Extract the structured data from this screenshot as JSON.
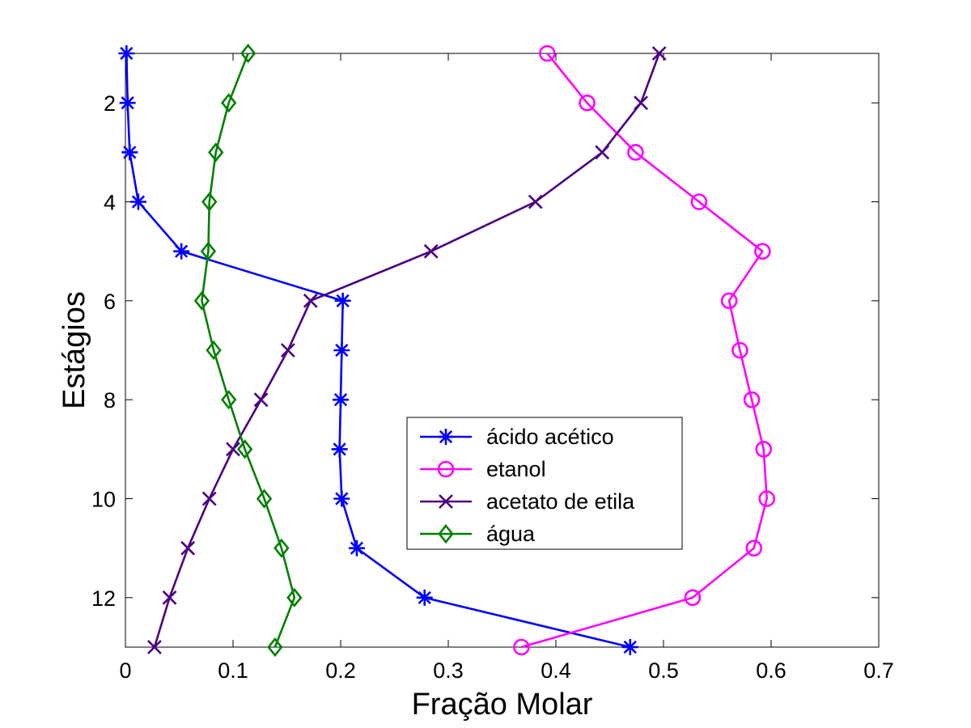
{
  "chart_data": {
    "type": "line",
    "xlabel": "Fração Molar",
    "ylabel": "Estágios",
    "xlim": [
      0,
      0.7
    ],
    "ylim": [
      1,
      13
    ],
    "y_reversed": true,
    "xticks": [
      "0",
      "0.1",
      "0.2",
      "0.3",
      "0.4",
      "0.5",
      "0.6",
      "0.7"
    ],
    "yticks": [
      "2",
      "4",
      "6",
      "8",
      "10",
      "12"
    ],
    "grid": false,
    "legend_position": "center-right",
    "y": [
      1,
      2,
      3,
      4,
      5,
      6,
      7,
      8,
      9,
      10,
      11,
      12,
      13
    ],
    "series": [
      {
        "name": "ácido acético",
        "color": "#0000FF",
        "marker": "asterisk",
        "values": [
          0.001,
          0.002,
          0.004,
          0.012,
          0.052,
          0.202,
          0.201,
          0.2,
          0.199,
          0.201,
          0.215,
          0.278,
          0.469
        ]
      },
      {
        "name": "etanol",
        "color": "#FF00FF",
        "marker": "circle",
        "values": [
          0.392,
          0.429,
          0.474,
          0.533,
          0.592,
          0.561,
          0.571,
          0.582,
          0.593,
          0.596,
          0.584,
          0.527,
          0.368
        ]
      },
      {
        "name": "acetato de etila",
        "color": "#4B0082",
        "marker": "x",
        "values": [
          0.496,
          0.479,
          0.443,
          0.381,
          0.284,
          0.172,
          0.151,
          0.126,
          0.1,
          0.078,
          0.058,
          0.041,
          0.027
        ]
      },
      {
        "name": "água",
        "color": "#008000",
        "marker": "diamond",
        "values": [
          0.114,
          0.096,
          0.084,
          0.078,
          0.077,
          0.071,
          0.082,
          0.096,
          0.111,
          0.129,
          0.145,
          0.157,
          0.139
        ]
      }
    ]
  }
}
